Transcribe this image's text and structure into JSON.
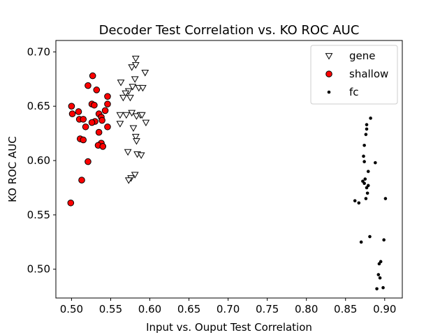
{
  "chart_data": {
    "type": "scatter",
    "title": "Decoder Test Correlation vs. KO ROC AUC",
    "xlabel": "Input vs. Ouput Test Correlation",
    "ylabel": "KO ROC AUC",
    "xlim": [
      0.48,
      0.9225
    ],
    "ylim": [
      0.4735,
      0.7105
    ],
    "xticks": [
      0.5,
      0.55,
      0.6,
      0.65,
      0.7,
      0.75,
      0.8,
      0.85,
      0.9
    ],
    "xtick_labels": [
      "0.50",
      "0.55",
      "0.60",
      "0.65",
      "0.70",
      "0.75",
      "0.80",
      "0.85",
      "0.90"
    ],
    "yticks": [
      0.5,
      0.55,
      0.6,
      0.65,
      0.7
    ],
    "ytick_labels": [
      "0.50",
      "0.55",
      "0.60",
      "0.65",
      "0.70"
    ],
    "grid": false,
    "legend_position": "top-right",
    "series": [
      {
        "name": "gene",
        "marker": "triangle-down-open",
        "color": "#000000",
        "fill": "#ffffff",
        "points": [
          [
            0.582,
            0.694
          ],
          [
            0.577,
            0.686
          ],
          [
            0.582,
            0.688
          ],
          [
            0.594,
            0.681
          ],
          [
            0.581,
            0.675
          ],
          [
            0.563,
            0.672
          ],
          [
            0.578,
            0.668
          ],
          [
            0.586,
            0.667
          ],
          [
            0.591,
            0.667
          ],
          [
            0.573,
            0.664
          ],
          [
            0.569,
            0.662
          ],
          [
            0.566,
            0.658
          ],
          [
            0.575,
            0.658
          ],
          [
            0.562,
            0.642
          ],
          [
            0.57,
            0.642
          ],
          [
            0.577,
            0.644
          ],
          [
            0.583,
            0.641
          ],
          [
            0.588,
            0.642
          ],
          [
            0.59,
            0.642
          ],
          [
            0.562,
            0.634
          ],
          [
            0.595,
            0.635
          ],
          [
            0.579,
            0.63
          ],
          [
            0.582,
            0.622
          ],
          [
            0.583,
            0.618
          ],
          [
            0.572,
            0.608
          ],
          [
            0.584,
            0.606
          ],
          [
            0.589,
            0.605
          ],
          [
            0.581,
            0.587
          ],
          [
            0.576,
            0.584
          ],
          [
            0.573,
            0.582
          ]
        ]
      },
      {
        "name": "shallow",
        "marker": "circle",
        "color": "#000000",
        "fill": "#ff0000",
        "points": [
          [
            0.527,
            0.678
          ],
          [
            0.521,
            0.669
          ],
          [
            0.532,
            0.665
          ],
          [
            0.546,
            0.659
          ],
          [
            0.5,
            0.65
          ],
          [
            0.526,
            0.652
          ],
          [
            0.529,
            0.651
          ],
          [
            0.546,
            0.652
          ],
          [
            0.543,
            0.646
          ],
          [
            0.509,
            0.645
          ],
          [
            0.501,
            0.643
          ],
          [
            0.535,
            0.643
          ],
          [
            0.538,
            0.64
          ],
          [
            0.51,
            0.638
          ],
          [
            0.515,
            0.638
          ],
          [
            0.539,
            0.637
          ],
          [
            0.53,
            0.636
          ],
          [
            0.526,
            0.635
          ],
          [
            0.518,
            0.631
          ],
          [
            0.546,
            0.631
          ],
          [
            0.535,
            0.626
          ],
          [
            0.511,
            0.62
          ],
          [
            0.515,
            0.619
          ],
          [
            0.538,
            0.616
          ],
          [
            0.534,
            0.614
          ],
          [
            0.54,
            0.613
          ],
          [
            0.521,
            0.599
          ],
          [
            0.513,
            0.582
          ],
          [
            0.499,
            0.561
          ]
        ]
      },
      {
        "name": "fc",
        "marker": "point",
        "color": "#000000",
        "fill": "#000000",
        "points": [
          [
            0.882,
            0.639
          ],
          [
            0.877,
            0.633
          ],
          [
            0.877,
            0.629
          ],
          [
            0.876,
            0.624
          ],
          [
            0.874,
            0.614
          ],
          [
            0.873,
            0.604
          ],
          [
            0.874,
            0.599
          ],
          [
            0.888,
            0.598
          ],
          [
            0.879,
            0.59
          ],
          [
            0.875,
            0.583
          ],
          [
            0.872,
            0.581
          ],
          [
            0.874,
            0.579
          ],
          [
            0.879,
            0.577
          ],
          [
            0.877,
            0.575
          ],
          [
            0.878,
            0.57
          ],
          [
            0.876,
            0.565
          ],
          [
            0.901,
            0.565
          ],
          [
            0.862,
            0.563
          ],
          [
            0.867,
            0.561
          ],
          [
            0.881,
            0.53
          ],
          [
            0.899,
            0.527
          ],
          [
            0.87,
            0.525
          ],
          [
            0.895,
            0.507
          ],
          [
            0.893,
            0.505
          ],
          [
            0.892,
            0.495
          ],
          [
            0.894,
            0.492
          ],
          [
            0.898,
            0.483
          ],
          [
            0.89,
            0.482
          ]
        ]
      }
    ]
  }
}
